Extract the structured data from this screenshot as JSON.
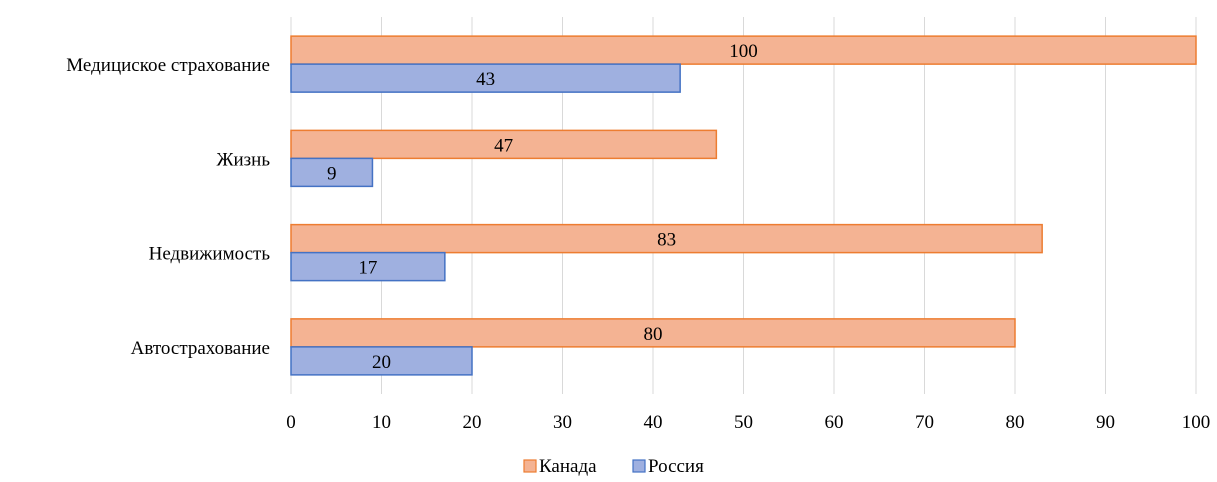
{
  "chart_data": {
    "type": "bar",
    "orientation": "horizontal",
    "categories": [
      "Автострахование",
      "Недвижимость",
      "Жизнь",
      "Медициское страхование"
    ],
    "series": [
      {
        "name": "Канада",
        "values": [
          80,
          83,
          47,
          100
        ],
        "fill": "#f4b393",
        "stroke": "#ed7d31"
      },
      {
        "name": "Россия",
        "values": [
          20,
          17,
          9,
          43
        ],
        "fill": "#9fb0e0",
        "stroke": "#4472c4"
      }
    ],
    "xlim": [
      0,
      100
    ],
    "xticks": [
      "0",
      "10",
      "20",
      "30",
      "40",
      "50",
      "60",
      "70",
      "80",
      "90",
      "100"
    ],
    "title": "",
    "xlabel": "",
    "ylabel": "",
    "grid": "vertical",
    "legend": "bottom-center",
    "gridColor": "#d9d9d9"
  }
}
